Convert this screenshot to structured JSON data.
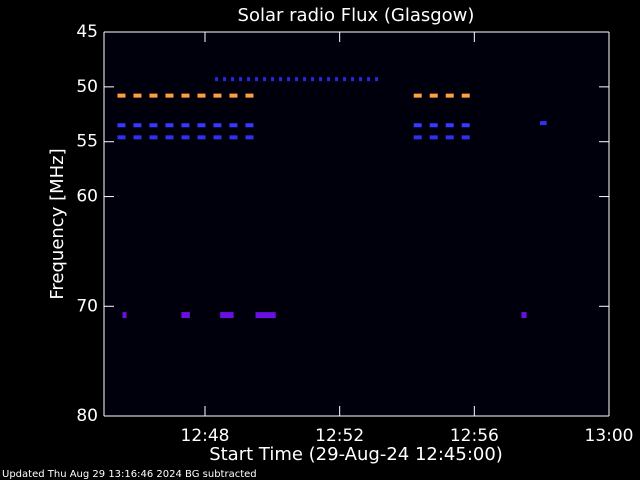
{
  "chart_data": {
    "type": "spectrogram",
    "title": "Solar radio Flux (Glasgow)",
    "x_label": "Start Time (29-Aug-24 12:45:00)",
    "y_label": "Frequency [MHz]",
    "footer": "Updated Thu Aug 29 13:16:46 2024   BG subtracted",
    "xlim": [
      0,
      15
    ],
    "xticks": [
      {
        "value": 3,
        "label": "12:48"
      },
      {
        "value": 7,
        "label": "12:52"
      },
      {
        "value": 11,
        "label": "12:56"
      },
      {
        "value": 15,
        "label": "13:00"
      }
    ],
    "ylim": [
      80,
      45
    ],
    "yticks": [
      45,
      50,
      55,
      60,
      70,
      80
    ],
    "segments": [
      {
        "freq": 50.8,
        "x": [
          0.4,
          4.65
        ],
        "color": "#ffa040",
        "dash": true
      },
      {
        "freq": 50.8,
        "x": [
          9.2,
          10.9
        ],
        "color": "#ffa040",
        "dash": true
      },
      {
        "freq": 53.5,
        "x": [
          0.4,
          4.65
        ],
        "color": "#3838ff",
        "dash": true
      },
      {
        "freq": 53.5,
        "x": [
          9.2,
          10.9
        ],
        "color": "#3838ff",
        "dash": true
      },
      {
        "freq": 54.6,
        "x": [
          0.4,
          4.65
        ],
        "color": "#3030f0",
        "dash": true
      },
      {
        "freq": 54.6,
        "x": [
          9.2,
          10.9
        ],
        "color": "#3030f0",
        "dash": true
      },
      {
        "freq": 49.3,
        "x": [
          3.3,
          8.15
        ],
        "color": "#2828e0",
        "dash": true
      },
      {
        "freq": 53.3,
        "x": [
          12.95,
          13.15
        ],
        "color": "#3030f0",
        "dash": false
      },
      {
        "freq": 70.8,
        "x": [
          0.55,
          0.67
        ],
        "color": "#6a10e0",
        "dash": false
      },
      {
        "freq": 70.8,
        "x": [
          2.3,
          2.55
        ],
        "color": "#6a10e0",
        "dash": false
      },
      {
        "freq": 70.8,
        "x": [
          3.45,
          3.85
        ],
        "color": "#6a10e0",
        "dash": false
      },
      {
        "freq": 70.8,
        "x": [
          4.5,
          5.1
        ],
        "color": "#6a10e0",
        "dash": false
      },
      {
        "freq": 70.8,
        "x": [
          12.4,
          12.55
        ],
        "color": "#6a10e0",
        "dash": false
      }
    ]
  }
}
